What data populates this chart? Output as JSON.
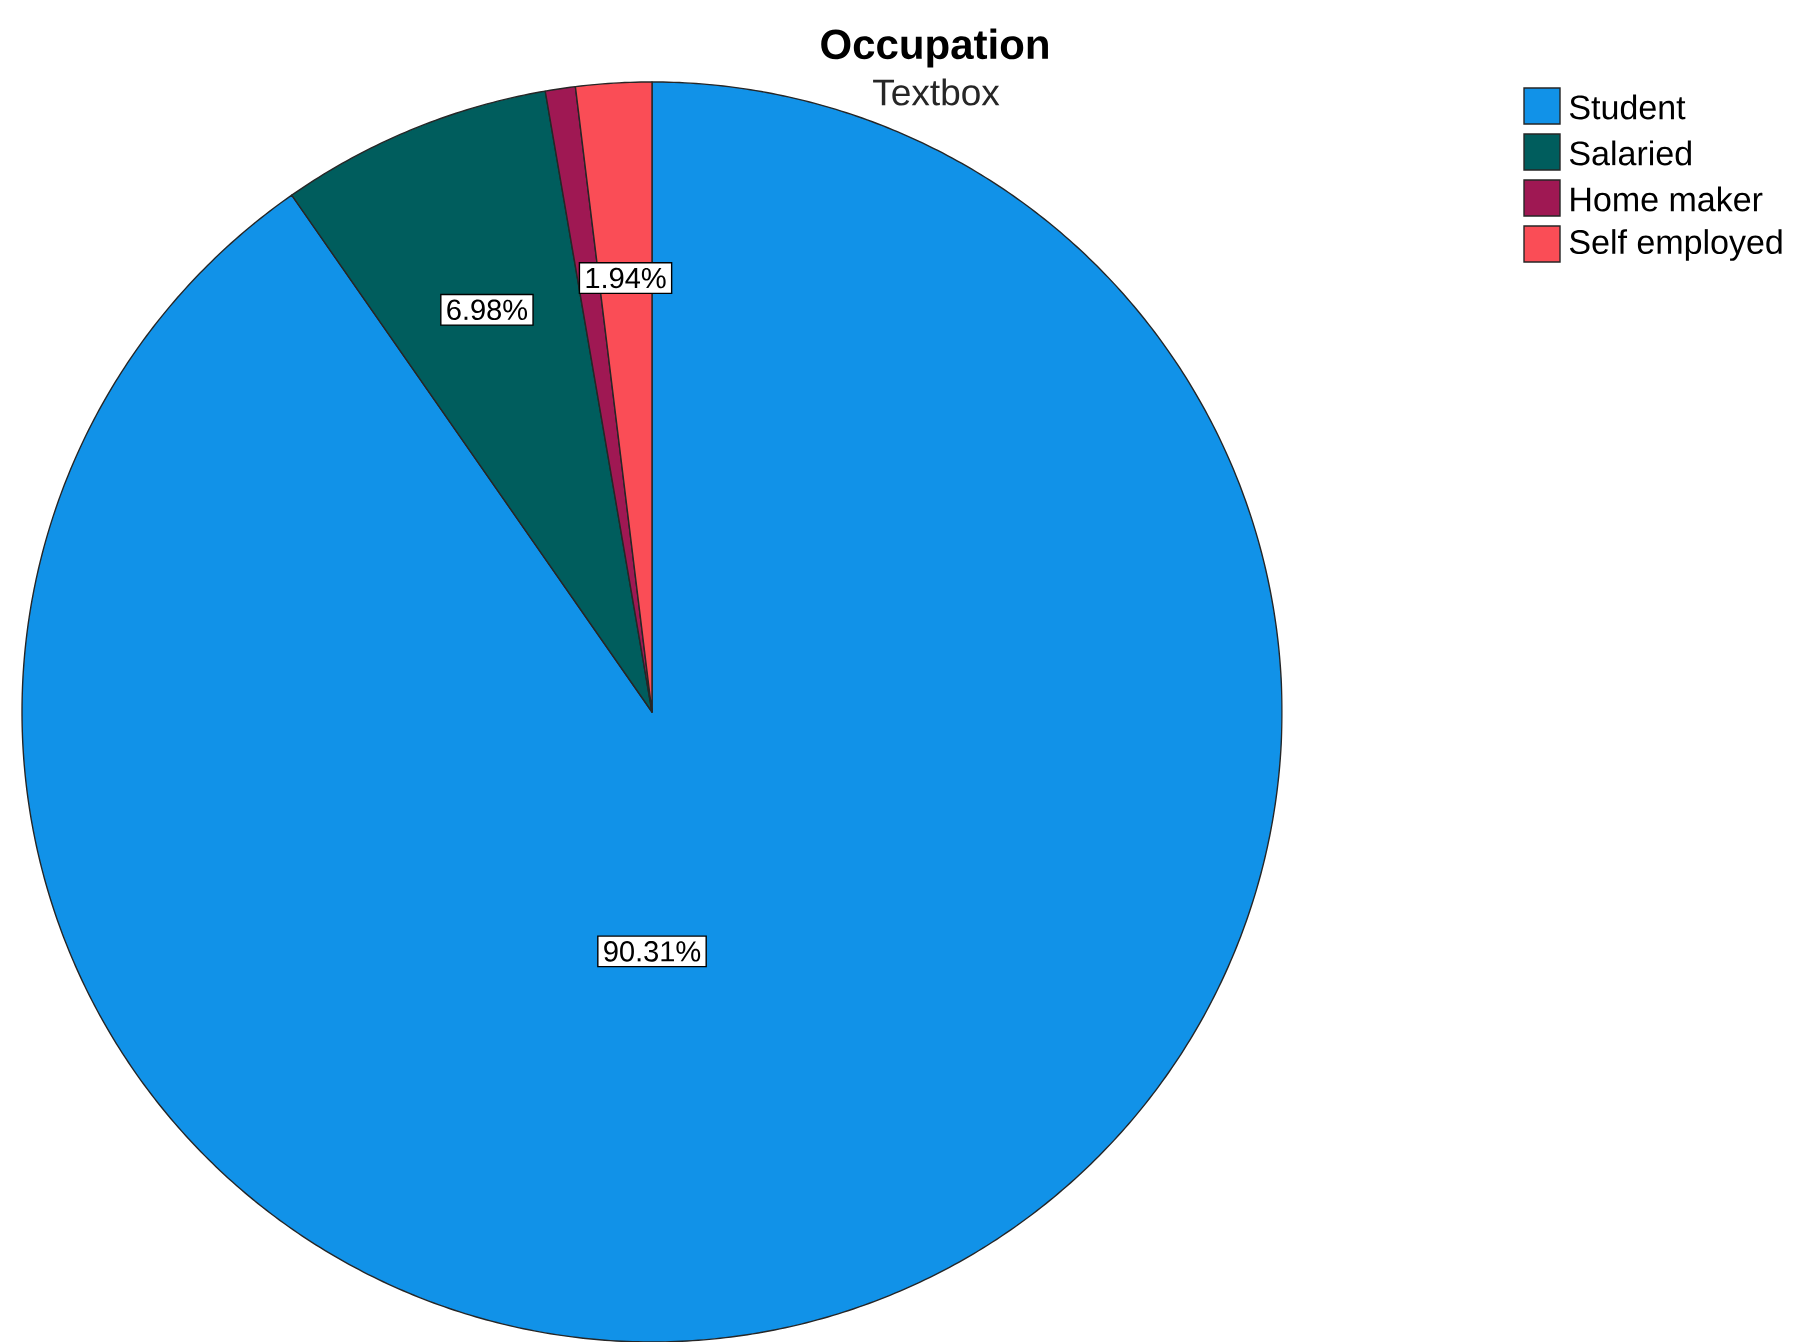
{
  "chart_data": {
    "type": "pie",
    "title": "Occupation",
    "subtitle": "Textbox",
    "categories": [
      "Student",
      "Salaried",
      "Home maker",
      "Self employed"
    ],
    "values": [
      90.31,
      6.98,
      0.77,
      1.94
    ],
    "colors": [
      "#1192e8",
      "#005d5d",
      "#9f1853",
      "#fa4d56"
    ],
    "value_labels": [
      "90.31%",
      "6.98%",
      null,
      "1.94%"
    ],
    "legend": "top right"
  }
}
